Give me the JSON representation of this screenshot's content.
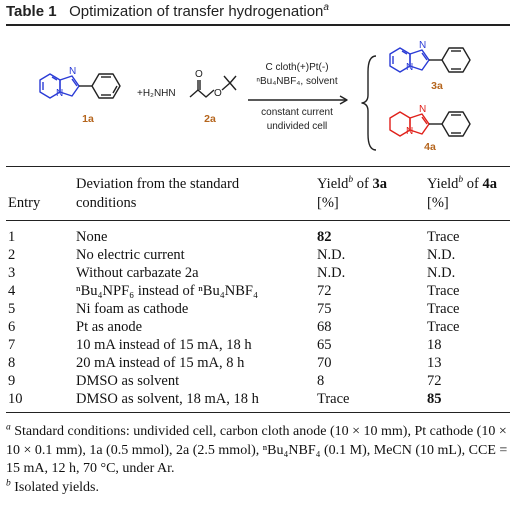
{
  "header": {
    "table_label": "Table 1",
    "title": "Optimization of transfer hydrogenation",
    "title_note": "a"
  },
  "scheme": {
    "reactant_1": "1a",
    "reactant_2_formula": "+H₂NHN",
    "reactant_2": "2a",
    "conditions": [
      "C cloth(+)Pt(-)",
      "ⁿBu₄NBF₄, solvent",
      "constant current",
      "undivided cell"
    ],
    "product_1": "3a",
    "product_2": "4a",
    "atom_N": "N",
    "atom_O": "O",
    "colors": {
      "product_3a": "#2a3bd6",
      "product_4a": "#e0201a",
      "label": "#b5651d"
    }
  },
  "table": {
    "headers": {
      "entry": "Entry",
      "deviation_line1": "Deviation from the standard",
      "deviation_line2": "conditions",
      "yield3a_pre": "Yield",
      "yield3a_sup": "b",
      "yield3a_mid": " of ",
      "yield3a_cmp": "3a",
      "yield3a_unit": "[%]",
      "yield4a_pre": "Yield",
      "yield4a_sup": "b",
      "yield4a_mid": " of ",
      "yield4a_cmp": "4a",
      "yield4a_unit": "[%]"
    },
    "rows": [
      {
        "entry": "1",
        "deviation": "None",
        "y3a": "82",
        "y4a": "Trace"
      },
      {
        "entry": "2",
        "deviation": "No electric current",
        "y3a": "N.D.",
        "y4a": "N.D."
      },
      {
        "entry": "3",
        "deviation": "Without carbazate 2a",
        "y3a": "N.D.",
        "y4a": "N.D."
      },
      {
        "entry": "4",
        "deviation": "ⁿBu₄NPF₆ instead of ⁿBu₄NBF₄",
        "y3a": "72",
        "y4a": "Trace"
      },
      {
        "entry": "5",
        "deviation": "Ni foam as cathode",
        "y3a": "75",
        "y4a": "Trace"
      },
      {
        "entry": "6",
        "deviation": "Pt as anode",
        "y3a": "68",
        "y4a": "Trace"
      },
      {
        "entry": "7",
        "deviation": "10 mA instead of 15 mA, 18 h",
        "y3a": "65",
        "y4a": "18"
      },
      {
        "entry": "8",
        "deviation": "20 mA instead of 15 mA, 8 h",
        "y3a": "70",
        "y4a": "13"
      },
      {
        "entry": "9",
        "deviation": "DMSO as solvent",
        "y3a": "8",
        "y4a": "72"
      },
      {
        "entry": "10",
        "deviation": "DMSO as solvent, 18 mA, 18 h",
        "y3a": "Trace",
        "y4a": "85"
      }
    ]
  },
  "footnotes": {
    "a_mark": "a",
    "a_text": "Standard conditions: undivided cell, carbon cloth anode (10 × 10 mm), Pt cathode (10 × 10 × 0.1 mm), 1a (0.5 mmol), 2a (2.5 mmol), ⁿBu₄NBF₄ (0.1 M), MeCN (10 mL), CCE = 15 mA, 12 h, 70 °C, under Ar.",
    "b_mark": "b",
    "b_text": "Isolated yields."
  }
}
